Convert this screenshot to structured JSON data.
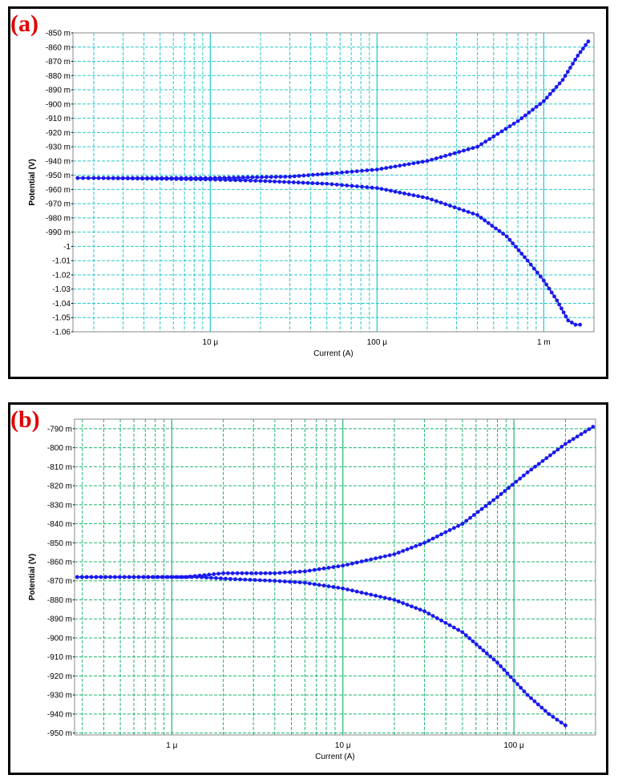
{
  "panels": [
    {
      "tag": "(a)"
    },
    {
      "tag": "(b)"
    }
  ],
  "colors": {
    "grid": "#28c8c8",
    "grid_b": "#1fb56e",
    "series": "#1a1aee"
  },
  "chart_data": [
    {
      "type": "line",
      "title": "",
      "xlabel": "Current (A)",
      "ylabel": "Potential (V)",
      "x_scale": "log",
      "xlim": [
        1.5e-06,
        0.002
      ],
      "ylim": [
        -1.06,
        -0.85
      ],
      "x_ticks": [
        {
          "v": 1e-05,
          "label": "10 μ"
        },
        {
          "v": 0.0001,
          "label": "100 μ"
        },
        {
          "v": 0.001,
          "label": "1 m"
        }
      ],
      "y_ticks": [
        {
          "v": -0.85,
          "label": "-850 m"
        },
        {
          "v": -0.86,
          "label": "-860 m"
        },
        {
          "v": -0.87,
          "label": "-870 m"
        },
        {
          "v": -0.88,
          "label": "-880 m"
        },
        {
          "v": -0.89,
          "label": "-890 m"
        },
        {
          "v": -0.9,
          "label": "-900 m"
        },
        {
          "v": -0.91,
          "label": "-910 m"
        },
        {
          "v": -0.92,
          "label": "-920 m"
        },
        {
          "v": -0.93,
          "label": "-930 m"
        },
        {
          "v": -0.94,
          "label": "-940 m"
        },
        {
          "v": -0.95,
          "label": "-950 m"
        },
        {
          "v": -0.96,
          "label": "-960 m"
        },
        {
          "v": -0.97,
          "label": "-970 m"
        },
        {
          "v": -0.98,
          "label": "-980 m"
        },
        {
          "v": -0.99,
          "label": "-990 m"
        },
        {
          "v": -1.0,
          "label": "-1"
        },
        {
          "v": -1.01,
          "label": "-1.01"
        },
        {
          "v": -1.02,
          "label": "-1.02"
        },
        {
          "v": -1.03,
          "label": "-1.03"
        },
        {
          "v": -1.04,
          "label": "-1.04"
        },
        {
          "v": -1.05,
          "label": "-1.05"
        },
        {
          "v": -1.06,
          "label": "-1.06"
        }
      ],
      "grid": true,
      "series": [
        {
          "values": [
            [
              1.6e-06,
              -0.952
            ],
            [
              2e-06,
              -0.952
            ],
            [
              1e-05,
              -0.952
            ],
            [
              3e-05,
              -0.951
            ],
            [
              5e-05,
              -0.949
            ],
            [
              0.0001,
              -0.946
            ],
            [
              0.0002,
              -0.94
            ],
            [
              0.0004,
              -0.93
            ],
            [
              0.0007,
              -0.912
            ],
            [
              0.001,
              -0.898
            ],
            [
              0.0013,
              -0.883
            ],
            [
              0.0016,
              -0.866
            ],
            [
              0.00185,
              -0.856
            ]
          ]
        },
        {
          "values": [
            [
              1.6e-06,
              -0.952
            ],
            [
              2e-06,
              -0.952
            ],
            [
              1e-05,
              -0.953
            ],
            [
              2e-05,
              -0.954
            ],
            [
              5e-05,
              -0.956
            ],
            [
              0.0001,
              -0.959
            ],
            [
              0.0002,
              -0.966
            ],
            [
              0.0004,
              -0.978
            ],
            [
              0.0006,
              -0.993
            ],
            [
              0.0008,
              -1.01
            ],
            [
              0.001,
              -1.024
            ],
            [
              0.0012,
              -1.038
            ],
            [
              0.0014,
              -1.052
            ],
            [
              0.00155,
              -1.055
            ],
            [
              0.00165,
              -1.055
            ]
          ]
        }
      ]
    },
    {
      "type": "line",
      "title": "",
      "xlabel": "Current (A)",
      "ylabel": "Potential (V)",
      "x_scale": "log",
      "xlim": [
        2.7e-07,
        0.0003
      ],
      "ylim": [
        -0.951,
        -0.785
      ],
      "x_ticks": [
        {
          "v": 1e-06,
          "label": "1 μ"
        },
        {
          "v": 1e-05,
          "label": "10 μ"
        },
        {
          "v": 0.0001,
          "label": "100 μ"
        }
      ],
      "y_ticks": [
        {
          "v": -0.79,
          "label": "-790 m"
        },
        {
          "v": -0.8,
          "label": "-800 m"
        },
        {
          "v": -0.81,
          "label": "-810 m"
        },
        {
          "v": -0.82,
          "label": "-820 m"
        },
        {
          "v": -0.83,
          "label": "-830 m"
        },
        {
          "v": -0.84,
          "label": "-840 m"
        },
        {
          "v": -0.85,
          "label": "-850 m"
        },
        {
          "v": -0.86,
          "label": "-860 m"
        },
        {
          "v": -0.87,
          "label": "-870 m"
        },
        {
          "v": -0.88,
          "label": "-880 m"
        },
        {
          "v": -0.89,
          "label": "-890 m"
        },
        {
          "v": -0.9,
          "label": "-900 m"
        },
        {
          "v": -0.91,
          "label": "-910 m"
        },
        {
          "v": -0.92,
          "label": "-920 m"
        },
        {
          "v": -0.93,
          "label": "-930 m"
        },
        {
          "v": -0.94,
          "label": "-940 m"
        },
        {
          "v": -0.95,
          "label": "-950 m"
        }
      ],
      "grid": true,
      "series": [
        {
          "values": [
            [
              2.8e-07,
              -0.868
            ],
            [
              6e-07,
              -0.868
            ],
            [
              1.2e-06,
              -0.868
            ],
            [
              2e-06,
              -0.866
            ],
            [
              4e-06,
              -0.866
            ],
            [
              6e-06,
              -0.865
            ],
            [
              1e-05,
              -0.862
            ],
            [
              2e-05,
              -0.856
            ],
            [
              3e-05,
              -0.85
            ],
            [
              5e-05,
              -0.84
            ],
            [
              8e-05,
              -0.826
            ],
            [
              0.00012,
              -0.813
            ],
            [
              0.0002,
              -0.798
            ],
            [
              0.00029,
              -0.789
            ]
          ]
        },
        {
          "values": [
            [
              2.8e-07,
              -0.868
            ],
            [
              6e-07,
              -0.868
            ],
            [
              1.4e-06,
              -0.868
            ],
            [
              2.2e-06,
              -0.869
            ],
            [
              4e-06,
              -0.87
            ],
            [
              6e-06,
              -0.871
            ],
            [
              1e-05,
              -0.874
            ],
            [
              2e-05,
              -0.88
            ],
            [
              3e-05,
              -0.886
            ],
            [
              5e-05,
              -0.897
            ],
            [
              8e-05,
              -0.913
            ],
            [
              0.00012,
              -0.93
            ],
            [
              0.00016,
              -0.94
            ],
            [
              0.0002,
              -0.946
            ]
          ]
        }
      ]
    }
  ]
}
